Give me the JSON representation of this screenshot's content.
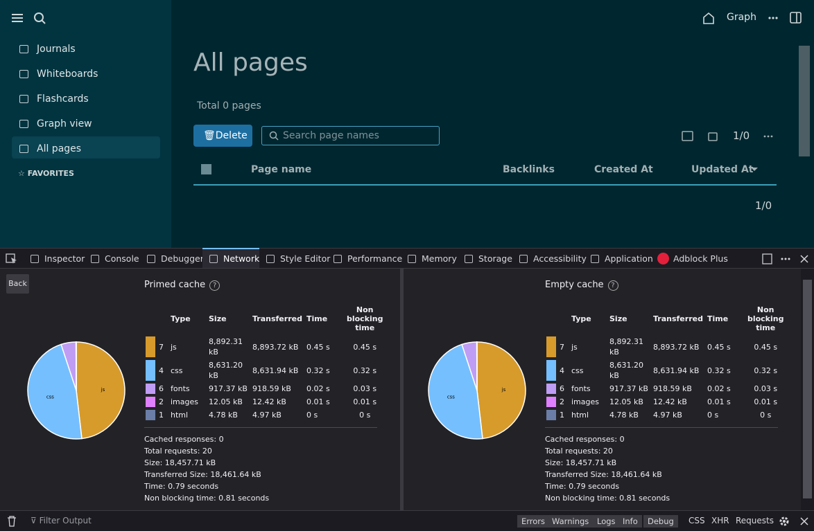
{
  "app": {
    "sidebar": {
      "nav": [
        "Journals",
        "Whiteboards",
        "Flashcards",
        "Graph view",
        "All pages"
      ],
      "favorites": "FAVORITES"
    },
    "header": {
      "graph": "Graph"
    },
    "main": {
      "title": "All pages",
      "total": "Total 0 pages",
      "delete": "Delete",
      "search_placeholder": "Search page names",
      "pager": "1/0",
      "columns": [
        "Page name",
        "Backlinks",
        "Created At",
        "Updated At"
      ],
      "footer_pager": "1/0"
    }
  },
  "devtools": {
    "tabs": [
      "Inspector",
      "Console",
      "Debugger",
      "Network",
      "Style Editor",
      "Performance",
      "Memory",
      "Storage",
      "Accessibility",
      "Application",
      "Adblock Plus"
    ],
    "selected_tab": "Network",
    "back": "Back",
    "panels": [
      {
        "title": "Primed cache",
        "columns": [
          "Type",
          "Size",
          "Transferred",
          "Time",
          "Non blocking time"
        ],
        "rows": [
          {
            "color": "#d79b2c",
            "count": 7,
            "type": "js",
            "size": {
              "value": 8892.31,
              "label": "8,892.31 kB"
            },
            "transferred": "8,893.72 kB",
            "time": "0.45 s",
            "non_blocking": "0.45 s"
          },
          {
            "color": "#75bfff",
            "count": 4,
            "type": "css",
            "size": {
              "value": 8631.2,
              "label": "8,631.20 kB"
            },
            "transferred": "8,631.94 kB",
            "time": "0.32 s",
            "non_blocking": "0.32 s"
          },
          {
            "color": "#bf9df5",
            "count": 6,
            "type": "fonts",
            "size": {
              "value": 917.37,
              "label": "917.37 kB"
            },
            "transferred": "918.59 kB",
            "time": "0.02 s",
            "non_blocking": "0.03 s"
          },
          {
            "color": "#df80ff",
            "count": 2,
            "type": "images",
            "size": {
              "value": 12.05,
              "label": "12.05 kB"
            },
            "transferred": "12.42 kB",
            "time": "0.01 s",
            "non_blocking": "0.01 s"
          },
          {
            "color": "#6b7ea8",
            "count": 1,
            "type": "html",
            "size": {
              "value": 4.78,
              "label": "4.78 kB"
            },
            "transferred": "4.97 kB",
            "time": "0 s",
            "non_blocking": "0 s"
          }
        ],
        "summary": [
          "Cached responses: 0",
          "Total requests: 20",
          "Size: 18,457.71 kB",
          "Transferred Size: 18,461.64 kB",
          "Time: 0.79 seconds",
          "Non blocking time: 0.81 seconds"
        ]
      },
      {
        "title": "Empty cache",
        "columns": [
          "Type",
          "Size",
          "Transferred",
          "Time",
          "Non blocking time"
        ],
        "rows": [
          {
            "color": "#d79b2c",
            "count": 7,
            "type": "js",
            "size": {
              "value": 8892.31,
              "label": "8,892.31 kB"
            },
            "transferred": "8,893.72 kB",
            "time": "0.45 s",
            "non_blocking": "0.45 s"
          },
          {
            "color": "#75bfff",
            "count": 4,
            "type": "css",
            "size": {
              "value": 8631.2,
              "label": "8,631.20 kB"
            },
            "transferred": "8,631.94 kB",
            "time": "0.32 s",
            "non_blocking": "0.32 s"
          },
          {
            "color": "#bf9df5",
            "count": 6,
            "type": "fonts",
            "size": {
              "value": 917.37,
              "label": "917.37 kB"
            },
            "transferred": "918.59 kB",
            "time": "0.02 s",
            "non_blocking": "0.03 s"
          },
          {
            "color": "#df80ff",
            "count": 2,
            "type": "images",
            "size": {
              "value": 12.05,
              "label": "12.05 kB"
            },
            "transferred": "12.42 kB",
            "time": "0.01 s",
            "non_blocking": "0.01 s"
          },
          {
            "color": "#6b7ea8",
            "count": 1,
            "type": "html",
            "size": {
              "value": 4.78,
              "label": "4.78 kB"
            },
            "transferred": "4.97 kB",
            "time": "0 s",
            "non_blocking": "0 s"
          }
        ],
        "summary": [
          "Cached responses: 0",
          "Total requests: 20",
          "Size: 18,457.71 kB",
          "Transferred Size: 18,461.64 kB",
          "Time: 0.79 seconds",
          "Non blocking time: 0.81 seconds"
        ]
      }
    ],
    "console": {
      "filter": "Filter Output",
      "levels": [
        "Errors",
        "Warnings",
        "Logs",
        "Info",
        "Debug"
      ],
      "filters": [
        "CSS",
        "XHR",
        "Requests"
      ]
    }
  }
}
